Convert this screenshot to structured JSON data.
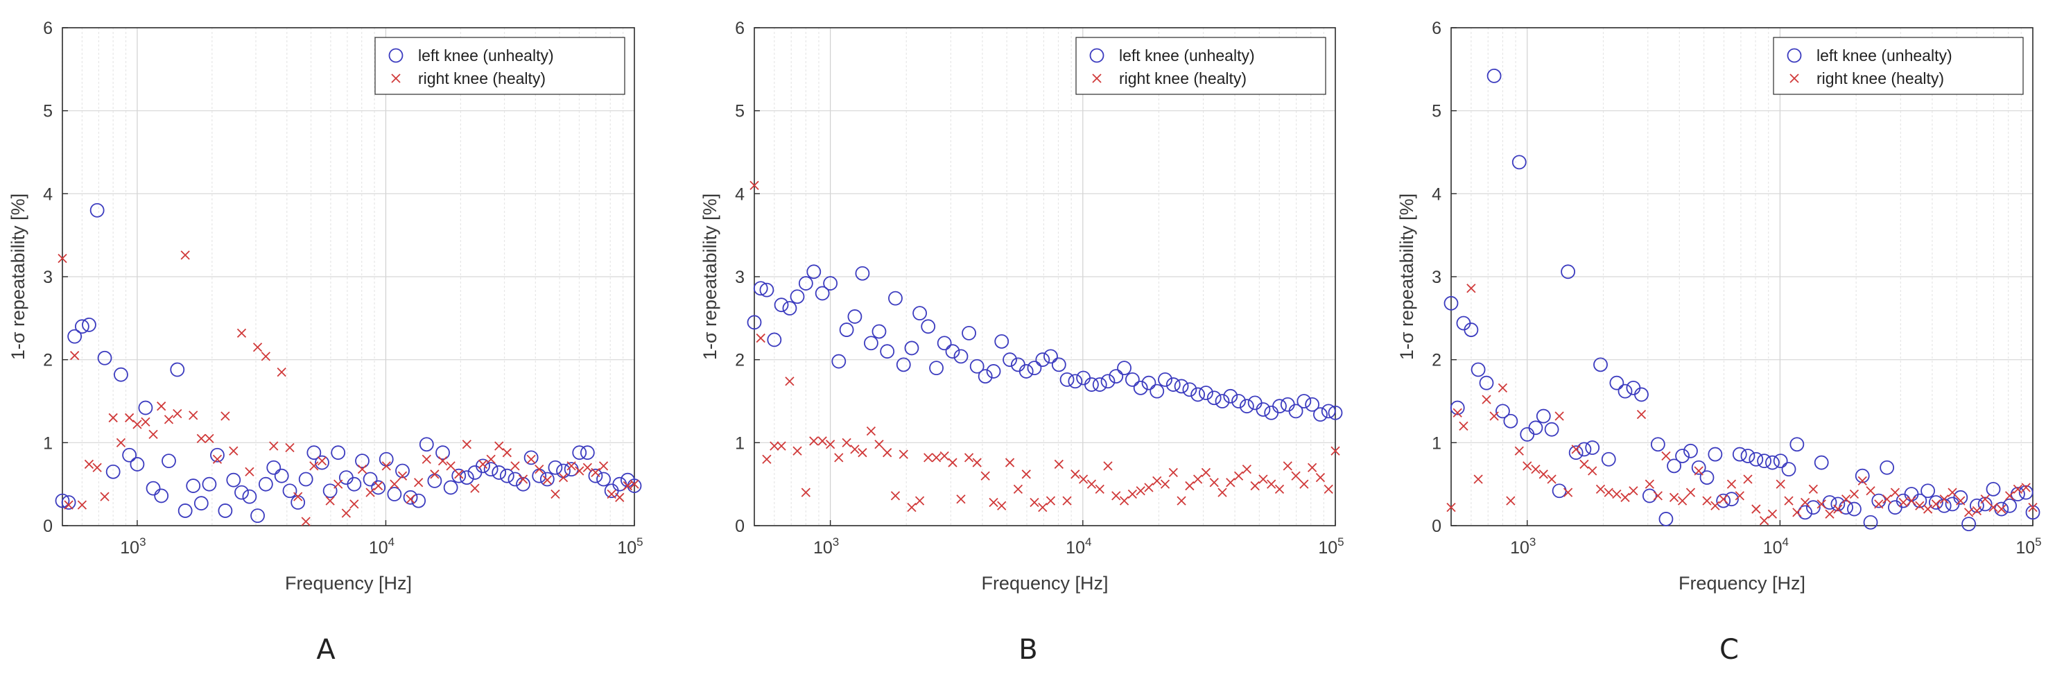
{
  "chart_data": [
    {
      "type": "scatter",
      "panel_label": "A",
      "xlabel": "Frequency [Hz]",
      "ylabel": "1-σ repeatability [%]",
      "xscale": "log",
      "xlim": [
        500,
        100000
      ],
      "ylim": [
        0,
        6
      ],
      "xticks": [
        1000,
        10000,
        100000
      ],
      "xtick_labels": [
        {
          "base": "10",
          "exp": "3"
        },
        {
          "base": "10",
          "exp": "4"
        },
        {
          "base": "10",
          "exp": "5"
        }
      ],
      "yticks": [
        0,
        1,
        2,
        3,
        4,
        5,
        6
      ],
      "grid": true,
      "legend_position": "top-right",
      "series": [
        {
          "name": "left knee (unhealty)",
          "marker": "circle",
          "color": "#3b3bbf",
          "x": [
            500,
            530,
            560,
            600,
            640,
            690,
            740,
            800,
            860,
            930,
            1000,
            1080,
            1160,
            1250,
            1340,
            1450,
            1560,
            1680,
            1810,
            1950,
            2100,
            2260,
            2440,
            2630,
            2830,
            3050,
            3290,
            3540,
            3810,
            4110,
            4430,
            4770,
            5140,
            5540,
            5970,
            6430,
            6930,
            7460,
            8040,
            8660,
            9330,
            10050,
            10830,
            11670,
            12570,
            13540,
            14590,
            15720,
            16940,
            18250,
            19660,
            21180,
            22820,
            24580,
            26490,
            28530,
            30740,
            33120,
            35680,
            38440,
            41410,
            44620,
            48070,
            51790,
            55790,
            60110,
            64760,
            69770,
            75170,
            80980,
            87250,
            94000,
            100000
          ],
          "y": [
            0.3,
            0.28,
            2.28,
            2.4,
            2.42,
            3.8,
            2.02,
            0.65,
            1.82,
            0.85,
            0.74,
            1.42,
            0.45,
            0.36,
            0.78,
            1.88,
            0.18,
            0.48,
            0.27,
            0.5,
            0.85,
            0.18,
            0.55,
            0.4,
            0.35,
            0.12,
            0.5,
            0.7,
            0.6,
            0.42,
            0.28,
            0.56,
            0.88,
            0.76,
            0.42,
            0.88,
            0.58,
            0.5,
            0.78,
            0.56,
            0.46,
            0.8,
            0.38,
            0.66,
            0.34,
            0.3,
            0.98,
            0.54,
            0.88,
            0.46,
            0.6,
            0.58,
            0.64,
            0.72,
            0.68,
            0.64,
            0.6,
            0.56,
            0.5,
            0.82,
            0.6,
            0.56,
            0.7,
            0.66,
            0.68,
            0.88,
            0.88,
            0.6,
            0.56,
            0.42,
            0.5,
            0.55,
            0.48
          ]
        },
        {
          "name": "right knee (healty)",
          "marker": "x",
          "color": "#d03a3a",
          "x": [
            500,
            530,
            560,
            600,
            640,
            690,
            740,
            800,
            860,
            930,
            1000,
            1080,
            1160,
            1250,
            1340,
            1450,
            1560,
            1680,
            1810,
            1950,
            2100,
            2260,
            2440,
            2630,
            2830,
            3050,
            3290,
            3540,
            3810,
            4110,
            4430,
            4770,
            5140,
            5540,
            5970,
            6430,
            6930,
            7460,
            8040,
            8660,
            9330,
            10050,
            10830,
            11670,
            12570,
            13540,
            14590,
            15720,
            16940,
            18250,
            19660,
            21180,
            22820,
            24580,
            26490,
            28530,
            30740,
            33120,
            35680,
            38440,
            41410,
            44620,
            48070,
            51790,
            55790,
            60110,
            64760,
            69770,
            75170,
            80980,
            87250,
            94000,
            100000
          ],
          "y": [
            3.22,
            0.25,
            2.05,
            0.25,
            0.74,
            0.7,
            0.35,
            1.3,
            1.0,
            1.3,
            1.22,
            1.25,
            1.1,
            1.44,
            1.28,
            1.35,
            3.26,
            1.33,
            1.05,
            1.05,
            0.8,
            1.32,
            0.9,
            2.32,
            0.65,
            2.15,
            2.04,
            0.96,
            1.85,
            0.94,
            0.35,
            0.05,
            0.72,
            0.78,
            0.3,
            0.5,
            0.15,
            0.26,
            0.68,
            0.4,
            0.48,
            0.72,
            0.5,
            0.6,
            0.32,
            0.52,
            0.8,
            0.62,
            0.78,
            0.72,
            0.62,
            0.98,
            0.45,
            0.74,
            0.8,
            0.96,
            0.88,
            0.72,
            0.56,
            0.8,
            0.68,
            0.55,
            0.38,
            0.58,
            0.72,
            0.66,
            0.7,
            0.64,
            0.72,
            0.38,
            0.34,
            0.48,
            0.5
          ]
        }
      ]
    },
    {
      "type": "scatter",
      "panel_label": "B",
      "xlabel": "Frequency [Hz]",
      "ylabel": "1-σ repeatability [%]",
      "xscale": "log",
      "xlim": [
        500,
        100000
      ],
      "ylim": [
        0,
        6
      ],
      "xticks": [
        1000,
        10000,
        100000
      ],
      "xtick_labels": [
        {
          "base": "10",
          "exp": "3"
        },
        {
          "base": "10",
          "exp": "4"
        },
        {
          "base": "10",
          "exp": "5"
        }
      ],
      "yticks": [
        0,
        1,
        2,
        3,
        4,
        5,
        6
      ],
      "grid": true,
      "legend_position": "top-right",
      "series": [
        {
          "name": "left knee (unhealty)",
          "marker": "circle",
          "color": "#3b3bbf",
          "x": [
            500,
            530,
            560,
            600,
            640,
            690,
            740,
            800,
            860,
            930,
            1000,
            1080,
            1160,
            1250,
            1340,
            1450,
            1560,
            1680,
            1810,
            1950,
            2100,
            2260,
            2440,
            2630,
            2830,
            3050,
            3290,
            3540,
            3810,
            4110,
            4430,
            4770,
            5140,
            5540,
            5970,
            6430,
            6930,
            7460,
            8040,
            8660,
            9330,
            10050,
            10830,
            11670,
            12570,
            13540,
            14590,
            15720,
            16940,
            18250,
            19660,
            21180,
            22820,
            24580,
            26490,
            28530,
            30740,
            33120,
            35680,
            38440,
            41410,
            44620,
            48070,
            51790,
            55790,
            60110,
            64760,
            69770,
            75170,
            80980,
            87250,
            94000,
            100000
          ],
          "y": [
            2.45,
            2.86,
            2.84,
            2.24,
            2.66,
            2.62,
            2.76,
            2.92,
            3.06,
            2.8,
            2.92,
            1.98,
            2.36,
            2.52,
            3.04,
            2.2,
            2.34,
            2.1,
            2.74,
            1.94,
            2.14,
            2.56,
            2.4,
            1.9,
            2.2,
            2.1,
            2.04,
            2.32,
            1.92,
            1.8,
            1.86,
            2.22,
            2.0,
            1.94,
            1.86,
            1.9,
            2.0,
            2.04,
            1.94,
            1.76,
            1.74,
            1.78,
            1.7,
            1.7,
            1.74,
            1.8,
            1.9,
            1.76,
            1.66,
            1.72,
            1.62,
            1.76,
            1.7,
            1.68,
            1.64,
            1.58,
            1.6,
            1.54,
            1.5,
            1.56,
            1.5,
            1.44,
            1.48,
            1.4,
            1.36,
            1.44,
            1.46,
            1.38,
            1.5,
            1.46,
            1.34,
            1.38,
            1.36
          ]
        },
        {
          "name": "right knee (healty)",
          "marker": "x",
          "color": "#d03a3a",
          "x": [
            500,
            530,
            560,
            600,
            640,
            690,
            740,
            800,
            860,
            930,
            1000,
            1080,
            1160,
            1250,
            1340,
            1450,
            1560,
            1680,
            1810,
            1950,
            2100,
            2260,
            2440,
            2630,
            2830,
            3050,
            3290,
            3540,
            3810,
            4110,
            4430,
            4770,
            5140,
            5540,
            5970,
            6430,
            6930,
            7460,
            8040,
            8660,
            9330,
            10050,
            10830,
            11670,
            12570,
            13540,
            14590,
            15720,
            16940,
            18250,
            19660,
            21180,
            22820,
            24580,
            26490,
            28530,
            30740,
            33120,
            35680,
            38440,
            41410,
            44620,
            48070,
            51790,
            55790,
            60110,
            64760,
            69770,
            75170,
            80980,
            87250,
            94000,
            100000
          ],
          "y": [
            4.1,
            2.26,
            0.8,
            0.96,
            0.96,
            1.74,
            0.9,
            0.4,
            1.02,
            1.02,
            0.98,
            0.82,
            1.0,
            0.92,
            0.88,
            1.14,
            0.98,
            0.88,
            0.36,
            0.86,
            0.22,
            0.3,
            0.82,
            0.82,
            0.84,
            0.76,
            0.32,
            0.82,
            0.76,
            0.6,
            0.28,
            0.24,
            0.76,
            0.44,
            0.62,
            0.28,
            0.22,
            0.3,
            0.74,
            0.3,
            0.62,
            0.56,
            0.5,
            0.44,
            0.72,
            0.36,
            0.3,
            0.38,
            0.42,
            0.46,
            0.54,
            0.5,
            0.64,
            0.3,
            0.48,
            0.56,
            0.64,
            0.52,
            0.4,
            0.52,
            0.6,
            0.68,
            0.48,
            0.56,
            0.5,
            0.44,
            0.72,
            0.6,
            0.5,
            0.7,
            0.58,
            0.44,
            0.9
          ]
        }
      ]
    },
    {
      "type": "scatter",
      "panel_label": "C",
      "xlabel": "Frequency [Hz]",
      "ylabel": "1-σ repeatability [%]",
      "xscale": "log",
      "xlim": [
        500,
        100000
      ],
      "ylim": [
        0,
        6
      ],
      "xticks": [
        1000,
        10000,
        100000
      ],
      "xtick_labels": [
        {
          "base": "10",
          "exp": "3"
        },
        {
          "base": "10",
          "exp": "4"
        },
        {
          "base": "10",
          "exp": "5"
        }
      ],
      "yticks": [
        0,
        1,
        2,
        3,
        4,
        5,
        6
      ],
      "grid": true,
      "legend_position": "top-right",
      "series": [
        {
          "name": "left knee (unhealty)",
          "marker": "circle",
          "color": "#3b3bbf",
          "x": [
            500,
            530,
            560,
            600,
            640,
            690,
            740,
            800,
            860,
            930,
            1000,
            1080,
            1160,
            1250,
            1340,
            1450,
            1560,
            1680,
            1810,
            1950,
            2100,
            2260,
            2440,
            2630,
            2830,
            3050,
            3290,
            3540,
            3810,
            4110,
            4430,
            4770,
            5140,
            5540,
            5970,
            6430,
            6930,
            7460,
            8040,
            8660,
            9330,
            10050,
            10830,
            11670,
            12570,
            13540,
            14590,
            15720,
            16940,
            18250,
            19660,
            21180,
            22820,
            24580,
            26490,
            28530,
            30740,
            33120,
            35680,
            38440,
            41410,
            44620,
            48070,
            51790,
            55790,
            60110,
            64760,
            69770,
            75170,
            80980,
            87250,
            94000,
            100000
          ],
          "y": [
            2.68,
            1.42,
            2.44,
            2.36,
            1.88,
            1.72,
            5.42,
            1.38,
            1.26,
            4.38,
            1.1,
            1.18,
            1.32,
            1.16,
            0.42,
            3.06,
            0.88,
            0.92,
            0.94,
            1.94,
            0.8,
            1.72,
            1.62,
            1.66,
            1.58,
            0.36,
            0.98,
            0.08,
            0.72,
            0.84,
            0.9,
            0.7,
            0.58,
            0.86,
            0.3,
            0.32,
            0.86,
            0.84,
            0.8,
            0.78,
            0.76,
            0.78,
            0.68,
            0.98,
            0.16,
            0.22,
            0.76,
            0.28,
            0.26,
            0.22,
            0.2,
            0.6,
            0.04,
            0.3,
            0.7,
            0.22,
            0.3,
            0.38,
            0.3,
            0.42,
            0.28,
            0.24,
            0.26,
            0.34,
            0.02,
            0.24,
            0.26,
            0.44,
            0.2,
            0.24,
            0.38,
            0.4,
            0.16
          ]
        },
        {
          "name": "right knee (healty)",
          "marker": "x",
          "color": "#d03a3a",
          "x": [
            500,
            530,
            560,
            600,
            640,
            690,
            740,
            800,
            860,
            930,
            1000,
            1080,
            1160,
            1250,
            1340,
            1450,
            1560,
            1680,
            1810,
            1950,
            2100,
            2260,
            2440,
            2630,
            2830,
            3050,
            3290,
            3540,
            3810,
            4110,
            4430,
            4770,
            5140,
            5540,
            5970,
            6430,
            6930,
            7460,
            8040,
            8660,
            9330,
            10050,
            10830,
            11670,
            12570,
            13540,
            14590,
            15720,
            16940,
            18250,
            19660,
            21180,
            22820,
            24580,
            26490,
            28530,
            30740,
            33120,
            35680,
            38440,
            41410,
            44620,
            48070,
            51790,
            55790,
            60110,
            64760,
            69770,
            75170,
            80980,
            87250,
            94000,
            100000
          ],
          "y": [
            0.22,
            1.36,
            1.2,
            2.86,
            0.56,
            1.52,
            1.32,
            1.66,
            0.3,
            0.9,
            0.72,
            0.68,
            0.62,
            0.56,
            1.32,
            0.4,
            0.92,
            0.74,
            0.66,
            0.44,
            0.4,
            0.38,
            0.34,
            0.42,
            1.34,
            0.5,
            0.36,
            0.84,
            0.34,
            0.3,
            0.4,
            0.66,
            0.3,
            0.24,
            0.32,
            0.5,
            0.36,
            0.56,
            0.2,
            0.06,
            0.14,
            0.5,
            0.3,
            0.16,
            0.28,
            0.44,
            0.26,
            0.14,
            0.2,
            0.32,
            0.38,
            0.54,
            0.42,
            0.26,
            0.32,
            0.4,
            0.28,
            0.3,
            0.24,
            0.2,
            0.26,
            0.32,
            0.4,
            0.3,
            0.16,
            0.18,
            0.32,
            0.22,
            0.2,
            0.36,
            0.44,
            0.46,
            0.22
          ]
        }
      ]
    }
  ]
}
